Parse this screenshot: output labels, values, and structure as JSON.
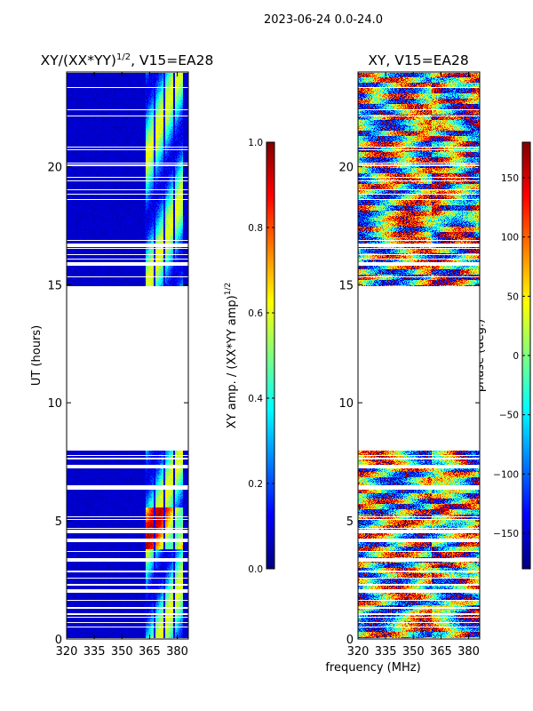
{
  "suptitle": "2023-06-24 0.0-24.0",
  "chart_data": [
    {
      "type": "heatmap",
      "title": "XY/(XX*YY)",
      "title_sup": "1/2",
      "title_suffix": ", V15=EA28",
      "xlabel": "frequency (MHz)",
      "ylabel": "UT (hours)",
      "xlim": [
        320,
        386
      ],
      "ylim": [
        0,
        24
      ],
      "xticks": [
        320,
        335,
        350,
        365,
        380
      ],
      "yticks": [
        0,
        5,
        10,
        15,
        20
      ],
      "data_ranges_hours": [
        [
          0,
          8
        ],
        [
          14.9,
          24
        ]
      ],
      "bright_band_MHz": [
        362,
        383
      ],
      "colorbar": {
        "label": "XY amp. / (XX*YY amp)",
        "label_sup": "1/2",
        "range": [
          0,
          1
        ],
        "ticks": [
          "0.0",
          "0.2",
          "0.4",
          "0.6",
          "0.8",
          "1.0"
        ],
        "cmap": "jet"
      }
    },
    {
      "type": "heatmap",
      "title": "XY, V15=EA28",
      "xlabel": "frequency (MHz)",
      "ylabel": "",
      "xlim": [
        320,
        386
      ],
      "ylim": [
        0,
        24
      ],
      "xticks": [
        320,
        335,
        350,
        365,
        380
      ],
      "yticks": [
        0,
        5,
        10,
        15,
        20
      ],
      "data_ranges_hours": [
        [
          0,
          8
        ],
        [
          14.9,
          24
        ]
      ],
      "colorbar": {
        "label": "phase (deg.)",
        "range": [
          -180,
          180
        ],
        "ticks": [
          "−150",
          "−100",
          "−50",
          "0",
          "50",
          "100",
          "150"
        ],
        "tick_values": [
          -150,
          -100,
          -50,
          0,
          50,
          100,
          150
        ],
        "cmap": "jet"
      }
    }
  ]
}
